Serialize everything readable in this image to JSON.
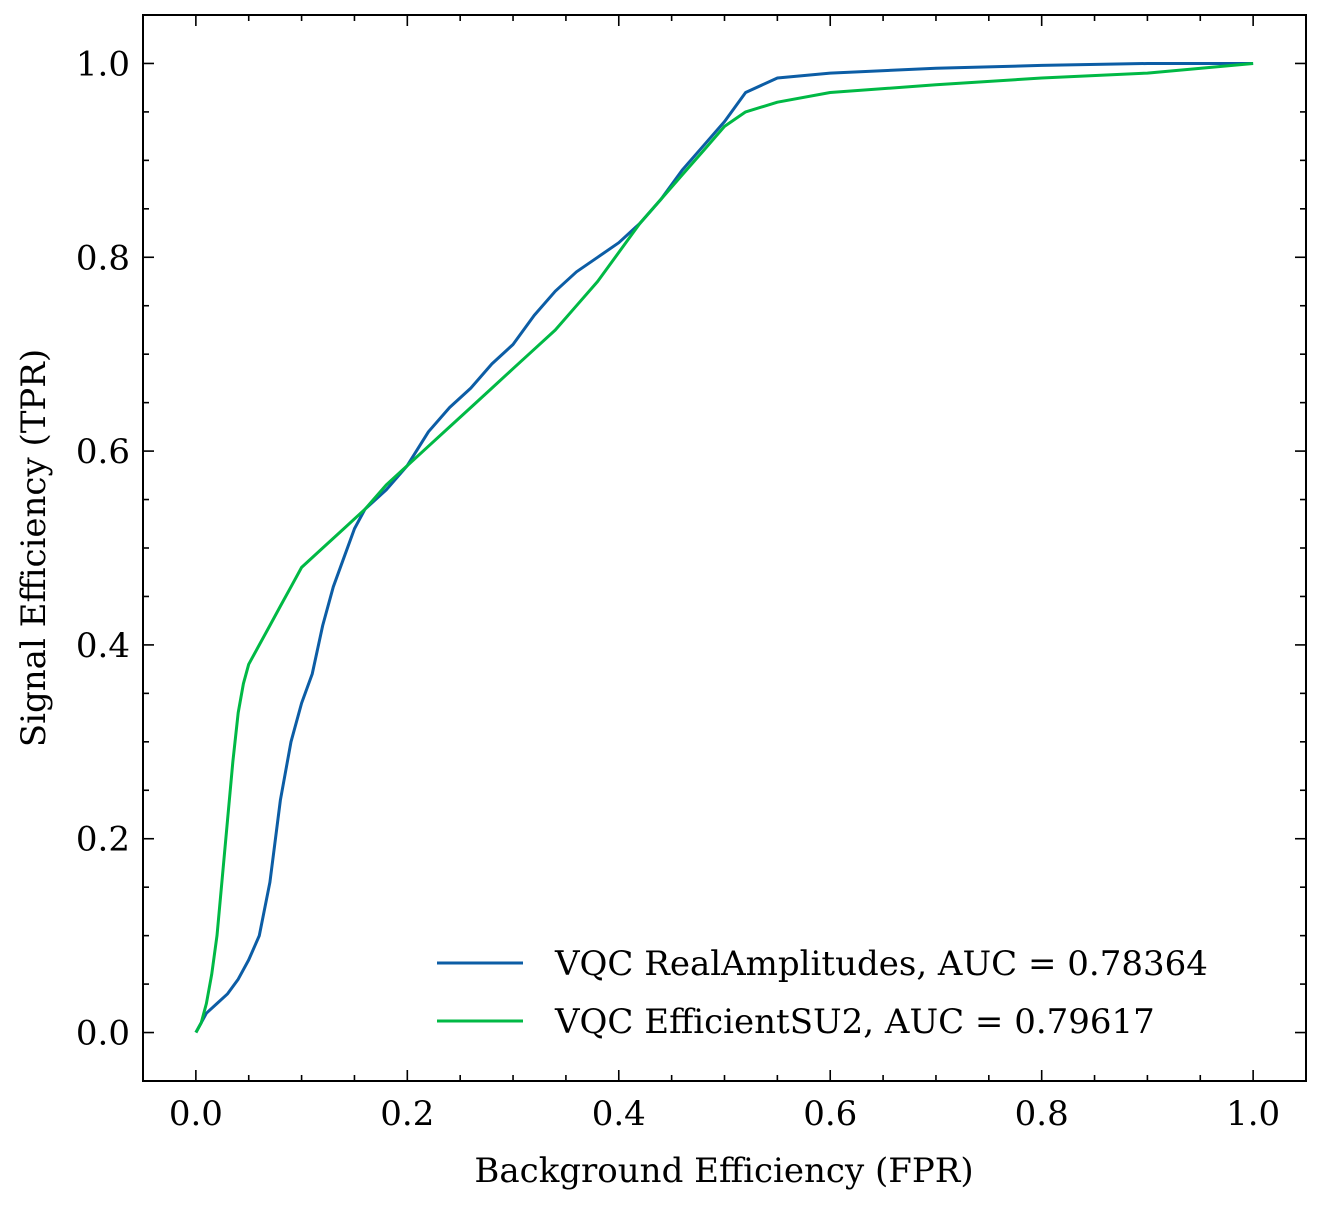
{
  "chart_data": {
    "type": "line",
    "title": "",
    "xlabel": "Background Efficiency (FPR)",
    "ylabel": "Signal Efficiency (TPR)",
    "xlim": [
      -0.05,
      1.05
    ],
    "ylim": [
      -0.05,
      1.05
    ],
    "xticks": [
      0.0,
      0.2,
      0.4,
      0.6,
      0.8,
      1.0
    ],
    "yticks": [
      0.0,
      0.2,
      0.4,
      0.6,
      0.8,
      1.0
    ],
    "xtick_labels": [
      "0.0",
      "0.2",
      "0.4",
      "0.6",
      "0.8",
      "1.0"
    ],
    "ytick_labels": [
      "0.0",
      "0.2",
      "0.4",
      "0.6",
      "0.8",
      "1.0"
    ],
    "grid": false,
    "legend_position": "lower-right",
    "series": [
      {
        "name": "VQC RealAmplitudes, AUC = 0.78364",
        "color": "#0C5DA5",
        "x": [
          0.0,
          0.01,
          0.02,
          0.03,
          0.04,
          0.05,
          0.06,
          0.07,
          0.08,
          0.09,
          0.1,
          0.11,
          0.12,
          0.13,
          0.14,
          0.15,
          0.16,
          0.18,
          0.2,
          0.22,
          0.24,
          0.26,
          0.28,
          0.3,
          0.32,
          0.34,
          0.36,
          0.38,
          0.4,
          0.42,
          0.44,
          0.46,
          0.48,
          0.5,
          0.52,
          0.55,
          0.6,
          0.7,
          0.8,
          0.9,
          1.0
        ],
        "y": [
          0.0,
          0.02,
          0.03,
          0.04,
          0.055,
          0.075,
          0.1,
          0.155,
          0.24,
          0.3,
          0.34,
          0.37,
          0.42,
          0.46,
          0.49,
          0.52,
          0.54,
          0.56,
          0.585,
          0.62,
          0.645,
          0.665,
          0.69,
          0.71,
          0.74,
          0.765,
          0.785,
          0.8,
          0.815,
          0.835,
          0.86,
          0.89,
          0.915,
          0.94,
          0.97,
          0.985,
          0.99,
          0.995,
          0.998,
          1.0,
          1.0
        ]
      },
      {
        "name": "VQC EfficientSU2, AUC = 0.79617",
        "color": "#00B945",
        "x": [
          0.0,
          0.005,
          0.01,
          0.015,
          0.02,
          0.025,
          0.03,
          0.035,
          0.04,
          0.045,
          0.05,
          0.06,
          0.07,
          0.08,
          0.09,
          0.1,
          0.12,
          0.14,
          0.16,
          0.18,
          0.2,
          0.22,
          0.24,
          0.26,
          0.28,
          0.3,
          0.32,
          0.34,
          0.36,
          0.38,
          0.4,
          0.42,
          0.44,
          0.46,
          0.48,
          0.5,
          0.52,
          0.55,
          0.6,
          0.7,
          0.8,
          0.9,
          1.0
        ],
        "y": [
          0.0,
          0.01,
          0.03,
          0.06,
          0.1,
          0.16,
          0.22,
          0.28,
          0.33,
          0.36,
          0.38,
          0.4,
          0.42,
          0.44,
          0.46,
          0.48,
          0.5,
          0.52,
          0.54,
          0.565,
          0.585,
          0.605,
          0.625,
          0.645,
          0.665,
          0.685,
          0.705,
          0.725,
          0.75,
          0.775,
          0.805,
          0.835,
          0.86,
          0.885,
          0.91,
          0.935,
          0.95,
          0.96,
          0.97,
          0.978,
          0.985,
          0.99,
          1.0
        ]
      }
    ]
  }
}
